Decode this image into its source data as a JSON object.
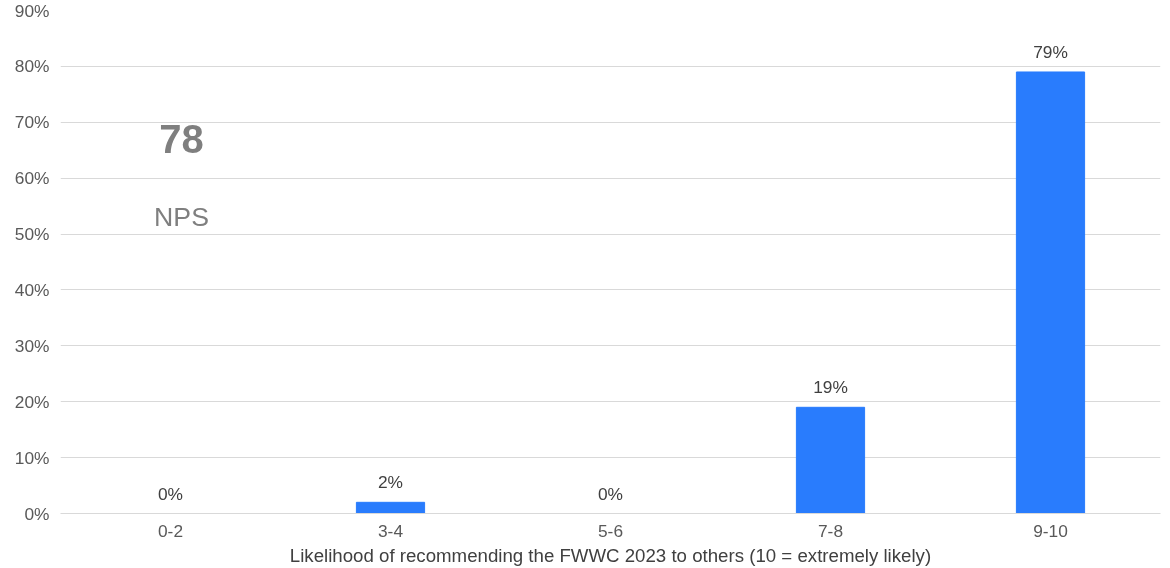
{
  "chart_data": {
    "type": "bar",
    "xlabel": "Likelihood of recommending the FWWC 2023 to others (10 = extremely likely)",
    "categories": [
      "0-2",
      "3-4",
      "5-6",
      "7-8",
      "9-10"
    ],
    "values": [
      0,
      2,
      0,
      19,
      79
    ],
    "color": "#297cfd",
    "data_labels": true,
    "value_labels": [
      "0%",
      "2%",
      "0%",
      "19%",
      "79%"
    ],
    "ylim": [
      0,
      90
    ],
    "yticks": [
      {
        "value": 0,
        "label": "0%"
      },
      {
        "value": 10,
        "label": "10%"
      },
      {
        "value": 20,
        "label": "20%"
      },
      {
        "value": 30,
        "label": "30%"
      },
      {
        "value": 40,
        "label": "40%"
      },
      {
        "value": 50,
        "label": "50%"
      },
      {
        "value": 60,
        "label": "60%"
      },
      {
        "value": 70,
        "label": "70%"
      },
      {
        "value": 80,
        "label": "80%"
      },
      {
        "value": 90,
        "label": "90%"
      }
    ],
    "grid": "y",
    "annotations": [
      "78",
      "NPS"
    ]
  }
}
